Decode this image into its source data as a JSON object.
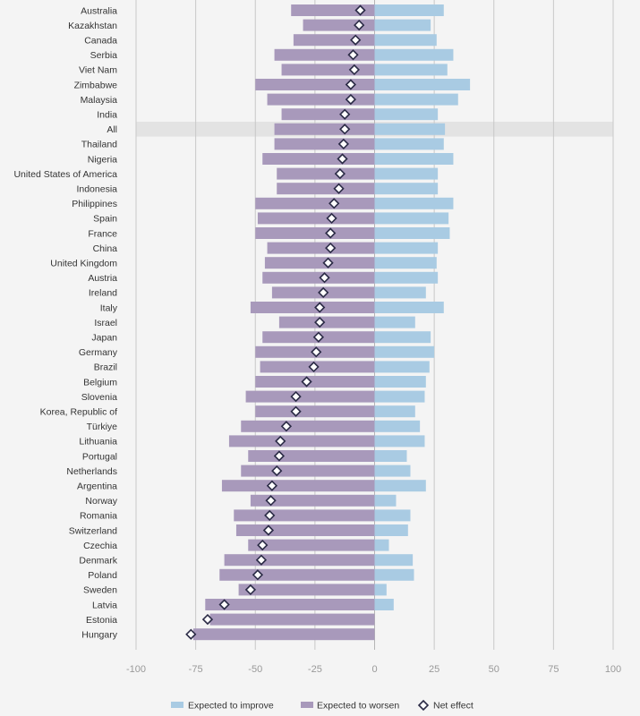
{
  "chart_data": {
    "type": "bar",
    "title": "",
    "xlabel": "",
    "ylabel": "",
    "xlim": [
      -100,
      100
    ],
    "x_ticks": [
      -100,
      -75,
      -50,
      -25,
      0,
      25,
      50,
      75,
      100
    ],
    "x_tick_labels": [
      "-100",
      "-75",
      "-50",
      "-25",
      "0",
      "25",
      "50",
      "75",
      "100"
    ],
    "highlight_category": "All",
    "grid": true,
    "legend_position": "bottom",
    "categories": [
      "Australia",
      "Kazakhstan",
      "Canada",
      "Serbia",
      "Viet Nam",
      "Zimbabwe",
      "Malaysia",
      "India",
      "All",
      "Thailand",
      "Nigeria",
      "United States of America",
      "Indonesia",
      "Philippines",
      "Spain",
      "France",
      "China",
      "United Kingdom",
      "Austria",
      "Ireland",
      "Italy",
      "Israel",
      "Japan",
      "Germany",
      "Brazil",
      "Belgium",
      "Slovenia",
      "Korea, Republic of",
      "Türkiye",
      "Lithuania",
      "Portugal",
      "Netherlands",
      "Argentina",
      "Norway",
      "Romania",
      "Switzerland",
      "Czechia",
      "Denmark",
      "Poland",
      "Sweden",
      "Latvia",
      "Estonia",
      "Hungary"
    ],
    "series": [
      {
        "name": "Expected to improve",
        "color": "#a9cbe3",
        "values": [
          29,
          23.5,
          26,
          33,
          30.5,
          40,
          35,
          26.5,
          29.5,
          29,
          33,
          26.5,
          26.5,
          33,
          31,
          31.5,
          26.5,
          26,
          26.5,
          21.5,
          29,
          17,
          23.5,
          25,
          23,
          21.5,
          21,
          17,
          19,
          21,
          13.5,
          15,
          21.5,
          9,
          15,
          14,
          6,
          16,
          16.5,
          5,
          8,
          0,
          0
        ]
      },
      {
        "name": "Expected to worsen",
        "color": "#a899bb",
        "values": [
          -35,
          -30,
          -34,
          -42,
          -39,
          -50,
          -45,
          -39,
          -42,
          -42,
          -47,
          -41,
          -41,
          -50,
          -49,
          -50,
          -45,
          -46,
          -47,
          -43,
          -52,
          -40,
          -47,
          -50,
          -48,
          -50,
          -54,
          -50,
          -56,
          -61,
          -53,
          -56,
          -64,
          -52,
          -59,
          -58,
          -53,
          -63,
          -65,
          -57,
          -71,
          -69,
          -76
        ]
      },
      {
        "name": "Net effect",
        "color": "#2a2a45",
        "values": [
          -6,
          -6.5,
          -8,
          -9,
          -8.5,
          -10,
          -10,
          -12.5,
          -12.5,
          -13,
          -13.5,
          -14.5,
          -15,
          -17,
          -18,
          -18.5,
          -18.5,
          -19.5,
          -21,
          -21.5,
          -23,
          -23,
          -23.5,
          -24.5,
          -25.5,
          -28.5,
          -33,
          -33,
          -37,
          -39.5,
          -40,
          -41,
          -43,
          -43.5,
          -44,
          -44.5,
          -47,
          -47.5,
          -49,
          -52,
          -63,
          -70,
          -77
        ]
      }
    ]
  }
}
